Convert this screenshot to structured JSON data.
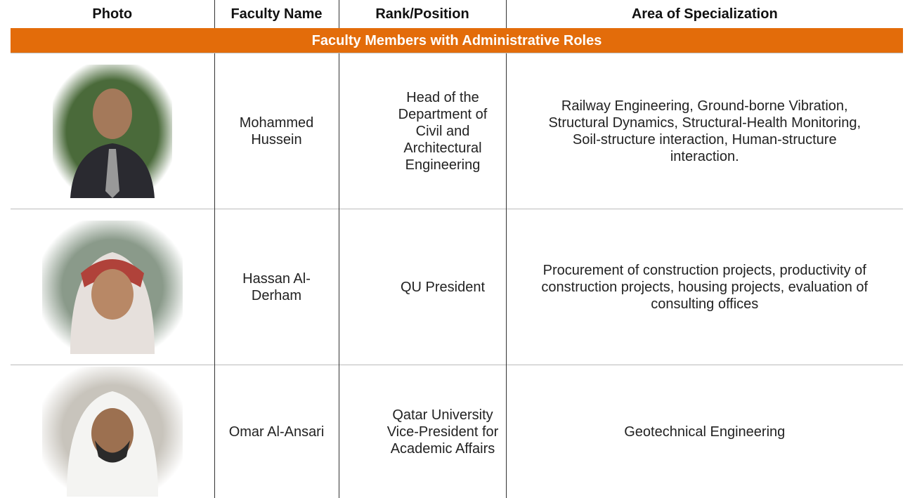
{
  "table": {
    "header": [
      "Photo",
      "Faculty Name",
      "Rank/Position",
      "Area of Specialization"
    ],
    "section": "Faculty Members with Administrative Roles",
    "rows": [
      [
        "Mohammed Hussein",
        "Head of the Department of Civil and Architectural Engineering",
        "Railway Engineering, Ground-borne Vibration, Structural Dynamics, Structural-Health Monitoring, Soil-structure interaction, Human-structure interaction."
      ],
      [
        "Hassan Al-Derham",
        "QU President",
        "Procurement of construction projects, productivity of construction projects, housing projects, evaluation of consulting offices"
      ],
      [
        "Omar Al-Ansari",
        "Qatar University Vice-President for Academic Affairs",
        "Geotechnical Engineering"
      ]
    ]
  }
}
